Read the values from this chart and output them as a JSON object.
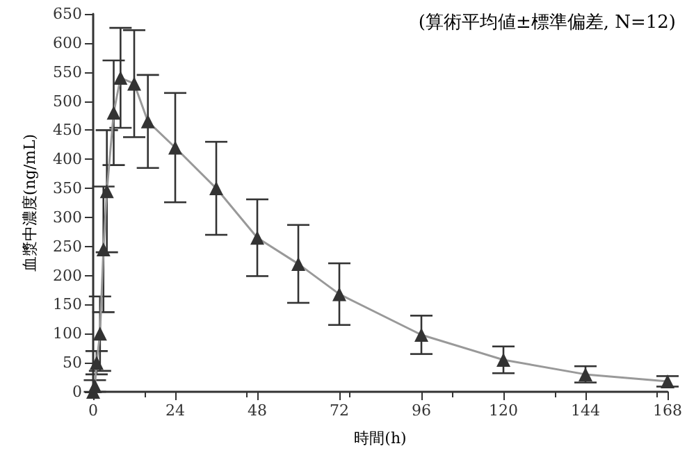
{
  "chart_data": {
    "type": "line",
    "xlabel": "時間(h)",
    "ylabel": "血漿中濃度(ng/mL)",
    "annotations": [
      "(算術平均値±標準偏差, N=12)"
    ],
    "x": [
      0,
      0.5,
      1,
      2,
      3,
      4,
      6,
      8,
      12,
      16,
      24,
      36,
      48,
      60,
      72,
      96,
      120,
      144,
      168
    ],
    "series": [
      {
        "color": "#333333",
        "values": [
          0,
          10,
          50,
          100,
          245,
          345,
          480,
          540,
          530,
          465,
          420,
          350,
          265,
          220,
          168,
          98,
          55,
          30,
          18
        ],
        "errors": [
          null,
          10,
          20,
          64,
          108,
          105,
          90,
          86,
          92,
          80,
          94,
          80,
          66,
          67,
          53,
          33,
          23,
          14,
          9
        ]
      }
    ],
    "xlim": [
      0,
      168
    ],
    "xticks": [
      0,
      24,
      48,
      72,
      96,
      120,
      144,
      168
    ],
    "ylim": [
      0,
      650
    ],
    "yticks": [
      0,
      50,
      100,
      150,
      200,
      250,
      300,
      350,
      400,
      450,
      500,
      550,
      600,
      650
    ],
    "marker": "triangle",
    "line_style": "solid"
  }
}
